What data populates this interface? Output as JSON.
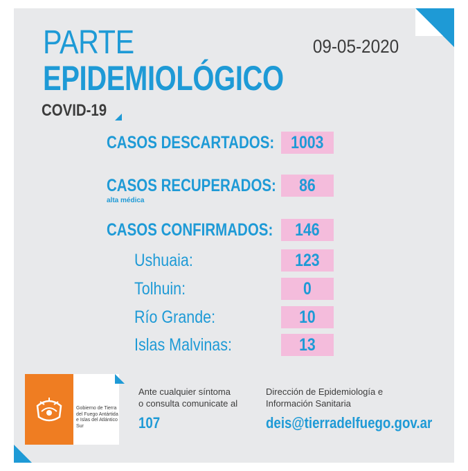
{
  "header": {
    "title_line1": "PARTE",
    "title_line2": "EPIDEMIOLÓGICO",
    "date": "09-05-2020",
    "subtitle": "COVID-19"
  },
  "stats": {
    "descartados": {
      "label": "CASOS DESCARTADOS:",
      "value": "1003"
    },
    "recuperados": {
      "label": "CASOS RECUPERADOS:",
      "note": "alta médica",
      "value": "86"
    },
    "confirmados": {
      "label": "CASOS CONFIRMADOS:",
      "value": "146"
    }
  },
  "cities": [
    {
      "label": "Ushuaia:",
      "value": "123"
    },
    {
      "label": "Tolhuin:",
      "value": "0"
    },
    {
      "label": "Río Grande:",
      "value": "10"
    },
    {
      "label": "Islas Malvinas:",
      "value": "13"
    }
  ],
  "footer": {
    "logo_text": "Gobierno de Tierra del Fuego Antártida e Islas del Atlántico Sur",
    "contact_line1": "Ante cualquier síntoma",
    "contact_line2": "o consulta comunicate al",
    "phone": "107",
    "dept_line1": "Dirección de Epidemiología e",
    "dept_line2": "Información Sanitaria",
    "email": "deis@tierradelfuego.gov.ar"
  },
  "colors": {
    "accent": "#1e9ad6",
    "box": "#f4bcdc",
    "logo_orange": "#ef7d22",
    "background": "#e8e9eb"
  }
}
